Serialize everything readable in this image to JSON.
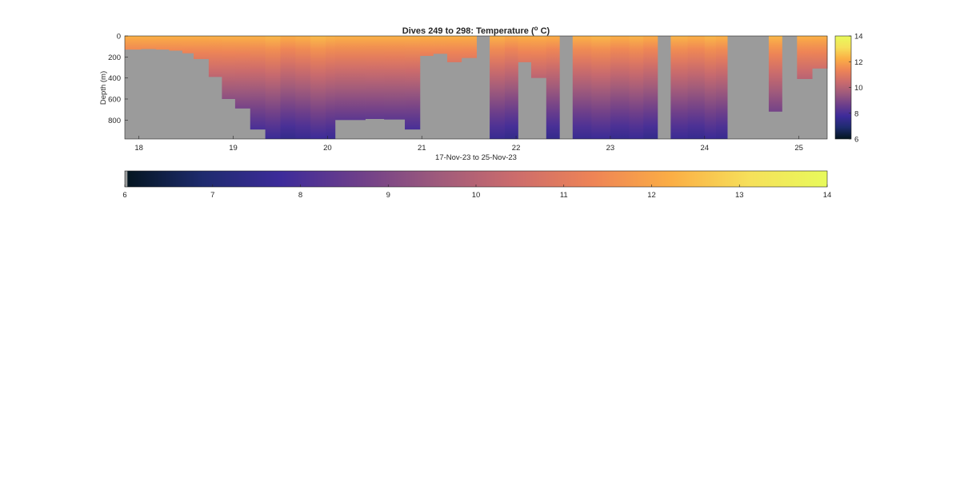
{
  "figure": {
    "title_main": "Dives 249 to 298: Temperature (",
    "title_sup": "o",
    "title_end": " C)"
  },
  "chart_data": {
    "type": "heatmap",
    "title": "Dives 249 to 298: Temperature (° C)",
    "xlabel": "17-Nov-23 to 25-Nov-23",
    "ylabel": "Depth (m)",
    "xlim": [
      17.85,
      25.3
    ],
    "ylim": [
      0,
      980
    ],
    "y_reversed": true,
    "xticks": [
      18,
      19,
      20,
      21,
      22,
      23,
      24,
      25
    ],
    "xtick_labels": [
      "18",
      "19",
      "20",
      "21",
      "22",
      "23",
      "24",
      "25"
    ],
    "yticks": [
      0,
      200,
      400,
      600,
      800
    ],
    "ytick_labels": [
      "0",
      "200",
      "400",
      "600",
      "800"
    ],
    "colorbar_right": {
      "ticks": [
        6,
        8,
        10,
        12,
        14
      ],
      "tick_labels": [
        "6",
        "8",
        "10",
        "12",
        "14"
      ]
    },
    "colorbar_bottom": {
      "ticks": [
        6,
        7,
        8,
        9,
        10,
        11,
        12,
        13,
        14
      ],
      "tick_labels": [
        "6",
        "7",
        "8",
        "9",
        "10",
        "11",
        "12",
        "13",
        "14"
      ]
    },
    "clim": [
      6,
      14
    ],
    "colormap": "thermal",
    "missing_color": "#9b9b9b",
    "colormap_stops": [
      "#03151e",
      "#1e2b6e",
      "#3d2b9a",
      "#6e3f8a",
      "#9e5a7c",
      "#cc6c6c",
      "#ee8456",
      "#fbae45",
      "#f6e05a",
      "#e8fa5b"
    ],
    "surface_temperature_approx": 12.3,
    "bottom_temperature_approx": 7.6,
    "columns": [
      {
        "x0": 17.85,
        "x1": 18.02,
        "max_depth": 130
      },
      {
        "x0": 18.02,
        "x1": 18.18,
        "max_depth": 125
      },
      {
        "x0": 18.18,
        "x1": 18.32,
        "max_depth": 130
      },
      {
        "x0": 18.32,
        "x1": 18.46,
        "max_depth": 140
      },
      {
        "x0": 18.46,
        "x1": 18.58,
        "max_depth": 165
      },
      {
        "x0": 18.58,
        "x1": 18.74,
        "max_depth": 220
      },
      {
        "x0": 18.74,
        "x1": 18.88,
        "max_depth": 390
      },
      {
        "x0": 18.88,
        "x1": 19.02,
        "max_depth": 600
      },
      {
        "x0": 19.02,
        "x1": 19.18,
        "max_depth": 690
      },
      {
        "x0": 19.18,
        "x1": 19.34,
        "max_depth": 890
      },
      {
        "x0": 19.34,
        "x1": 19.5,
        "max_depth": 980,
        "warm": 0.1
      },
      {
        "x0": 19.5,
        "x1": 19.66,
        "max_depth": 980,
        "warm": -0.1
      },
      {
        "x0": 19.66,
        "x1": 19.82,
        "max_depth": 980,
        "warm": 0.0
      },
      {
        "x0": 19.82,
        "x1": 19.98,
        "max_depth": 980,
        "warm": 0.15
      },
      {
        "x0": 19.98,
        "x1": 20.08,
        "max_depth": 980,
        "warm": 0.05
      },
      {
        "x0": 20.08,
        "x1": 20.4,
        "max_depth": 800
      },
      {
        "x0": 20.4,
        "x1": 20.6,
        "max_depth": 790
      },
      {
        "x0": 20.6,
        "x1": 20.82,
        "max_depth": 795
      },
      {
        "x0": 20.82,
        "x1": 20.98,
        "max_depth": 890
      },
      {
        "x0": 20.98,
        "x1": 21.12,
        "max_depth": 190
      },
      {
        "x0": 21.12,
        "x1": 21.27,
        "max_depth": 170
      },
      {
        "x0": 21.27,
        "x1": 21.42,
        "max_depth": 250
      },
      {
        "x0": 21.42,
        "x1": 21.58,
        "max_depth": 210
      },
      {
        "x0": 21.58,
        "x1": 21.72,
        "max_depth": 0
      },
      {
        "x0": 21.72,
        "x1": 21.88,
        "max_depth": 980,
        "warm": 0.0
      },
      {
        "x0": 21.88,
        "x1": 22.02,
        "max_depth": 980,
        "warm": -0.15
      },
      {
        "x0": 22.02,
        "x1": 22.16,
        "max_depth": 250
      },
      {
        "x0": 22.16,
        "x1": 22.32,
        "max_depth": 400
      },
      {
        "x0": 22.32,
        "x1": 22.46,
        "max_depth": 980,
        "warm": -0.1
      },
      {
        "x0": 22.46,
        "x1": 22.6,
        "max_depth": 0
      },
      {
        "x0": 22.6,
        "x1": 22.8,
        "max_depth": 980,
        "warm": 0.0
      },
      {
        "x0": 22.8,
        "x1": 23.0,
        "max_depth": 980,
        "warm": 0.1
      },
      {
        "x0": 23.0,
        "x1": 23.2,
        "max_depth": 980,
        "warm": -0.05
      },
      {
        "x0": 23.2,
        "x1": 23.35,
        "max_depth": 980,
        "warm": 0.05
      },
      {
        "x0": 23.35,
        "x1": 23.5,
        "max_depth": 980,
        "warm": -0.1
      },
      {
        "x0": 23.5,
        "x1": 23.64,
        "max_depth": 0
      },
      {
        "x0": 23.64,
        "x1": 23.82,
        "max_depth": 980,
        "warm": 0.05
      },
      {
        "x0": 23.82,
        "x1": 24.0,
        "max_depth": 980,
        "warm": -0.05
      },
      {
        "x0": 24.0,
        "x1": 24.12,
        "max_depth": 980,
        "warm": 0.1
      },
      {
        "x0": 24.12,
        "x1": 24.24,
        "max_depth": 980,
        "warm": 0.0
      },
      {
        "x0": 24.24,
        "x1": 24.68,
        "max_depth": 0
      },
      {
        "x0": 24.68,
        "x1": 24.82,
        "max_depth": 720,
        "warm": 0.1
      },
      {
        "x0": 24.82,
        "x1": 24.98,
        "max_depth": 0
      },
      {
        "x0": 24.98,
        "x1": 25.14,
        "max_depth": 410
      },
      {
        "x0": 25.14,
        "x1": 25.3,
        "max_depth": 310
      }
    ]
  }
}
